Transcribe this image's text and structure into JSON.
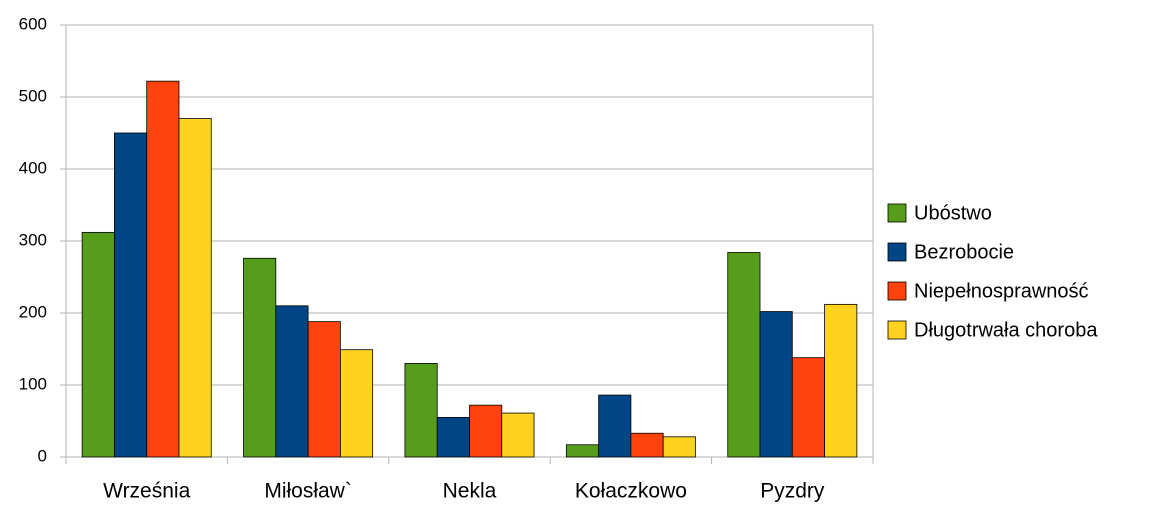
{
  "chart_data": {
    "type": "bar",
    "categories": [
      "Września",
      "Miłosław`",
      "Nekla",
      "Kołaczkowo",
      "Pyzdry"
    ],
    "series": [
      {
        "name": "Ubóstwo",
        "color": "#579d1c",
        "values": [
          312,
          276,
          130,
          17,
          284
        ]
      },
      {
        "name": "Bezrobocie",
        "color": "#004586",
        "values": [
          450,
          210,
          55,
          86,
          202
        ]
      },
      {
        "name": "Niepełnosprawność",
        "color": "#ff420e",
        "values": [
          522,
          188,
          72,
          33,
          138
        ]
      },
      {
        "name": "Długotrwała choroba",
        "color": "#ffd320",
        "values": [
          470,
          149,
          61,
          28,
          212
        ]
      }
    ],
    "ylim": [
      0,
      600
    ],
    "yticks": [
      0,
      100,
      200,
      300,
      400,
      500,
      600
    ],
    "grid": true,
    "legend": "right"
  }
}
